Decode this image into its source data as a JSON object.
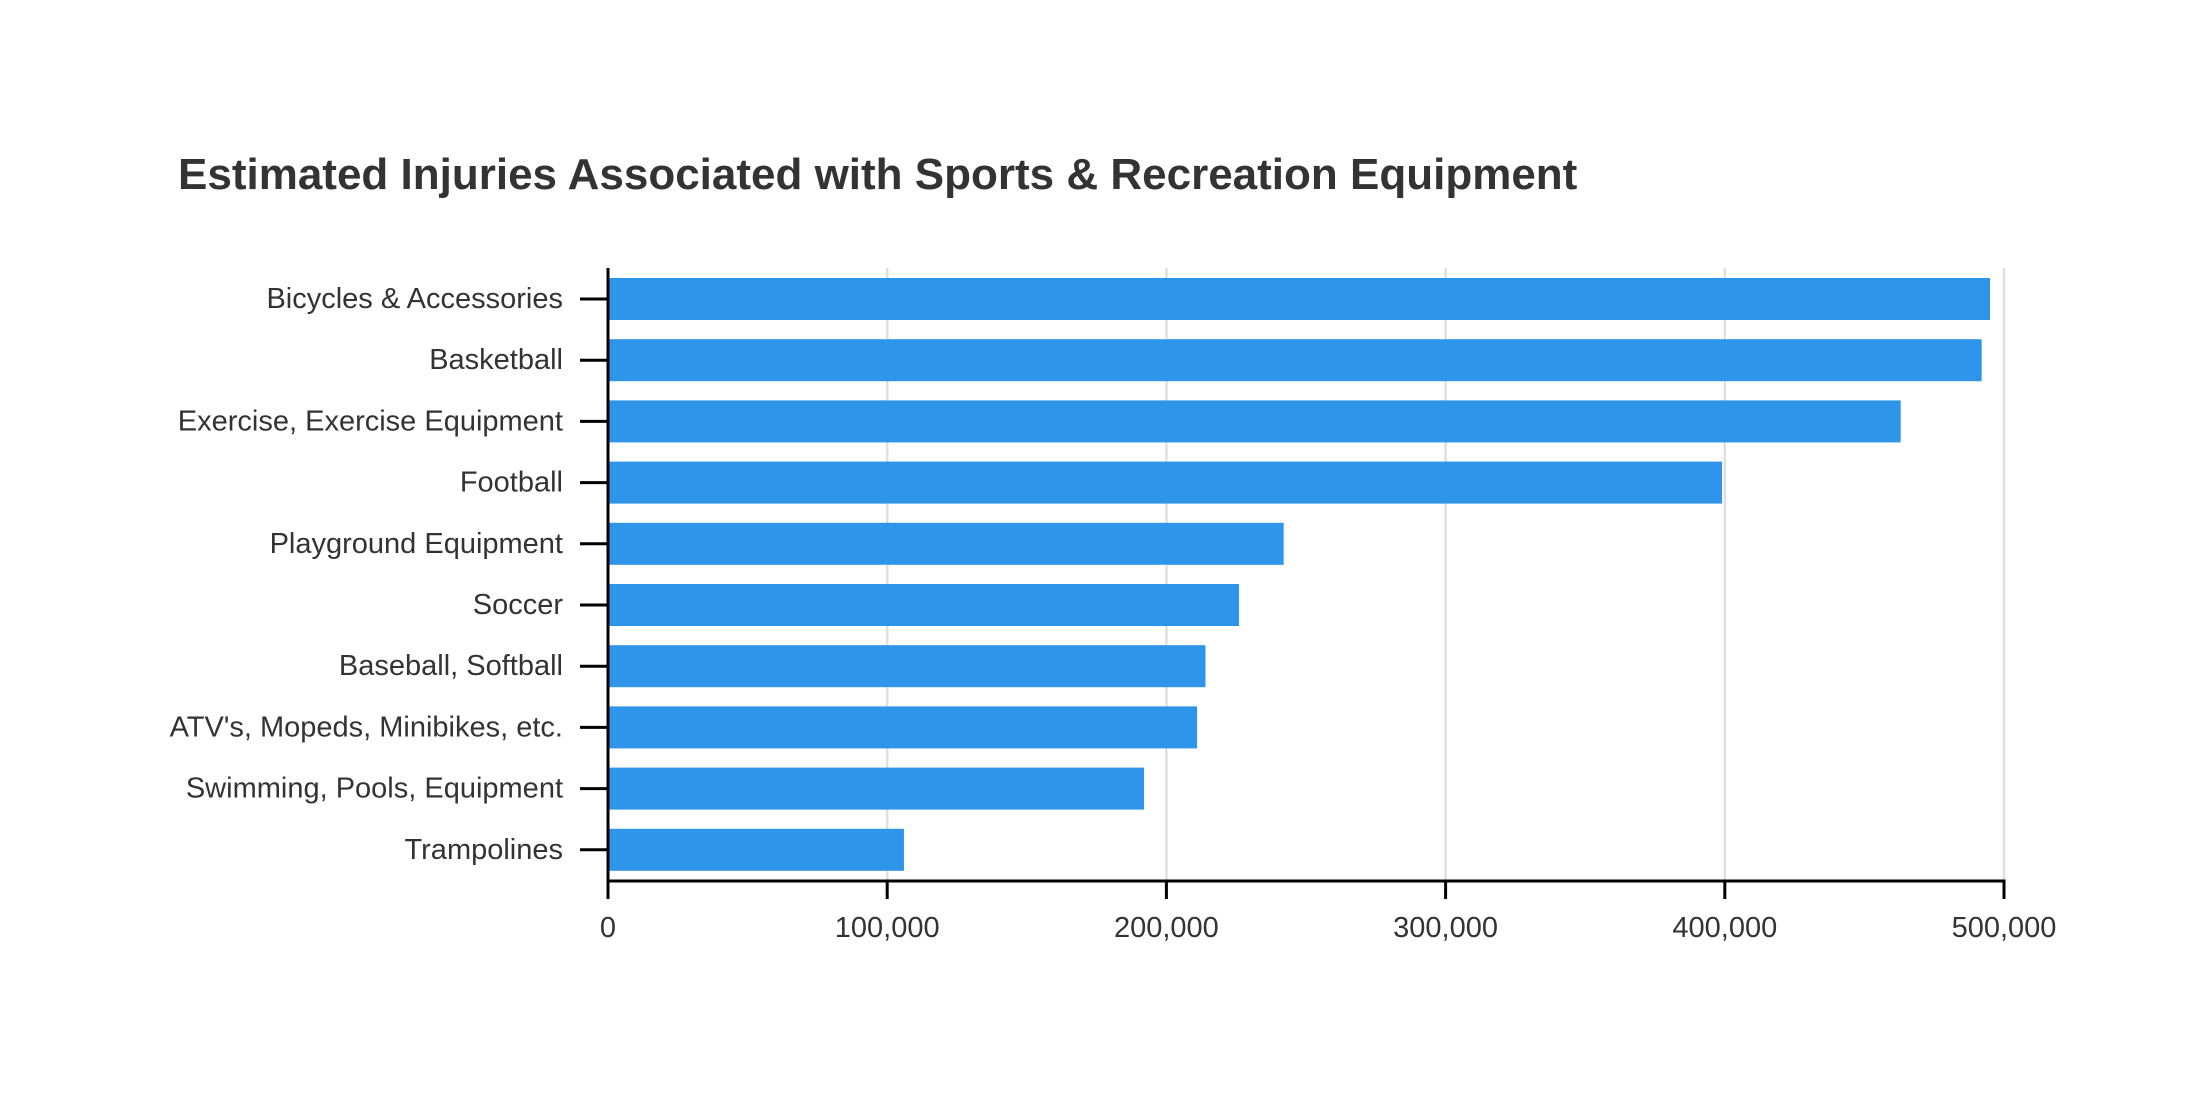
{
  "chart_data": {
    "type": "bar",
    "orientation": "horizontal",
    "title": "Estimated Injuries Associated with Sports & Recreation Equipment",
    "xlabel": "",
    "ylabel": "",
    "xlim": [
      0,
      500000
    ],
    "x_ticks": [
      "0",
      "100,000",
      "200,000",
      "300,000",
      "400,000",
      "500,000"
    ],
    "x_tick_values": [
      0,
      100000,
      200000,
      300000,
      400000,
      500000
    ],
    "grid": "vertical",
    "colors": {
      "bar": "#2f95eb",
      "grid": "#e0e0e0",
      "axis": "#000000",
      "text": "#333333"
    },
    "categories": [
      "Bicycles & Accessories",
      "Basketball",
      "Exercise, Exercise Equipment",
      "Football",
      "Playground Equipment",
      "Soccer",
      "Baseball, Softball",
      "ATV's, Mopeds, Minibikes, etc.",
      "Swimming, Pools, Equipment",
      "Trampolines"
    ],
    "values": [
      495000,
      492000,
      463000,
      399000,
      242000,
      226000,
      214000,
      211000,
      192000,
      106000
    ]
  }
}
